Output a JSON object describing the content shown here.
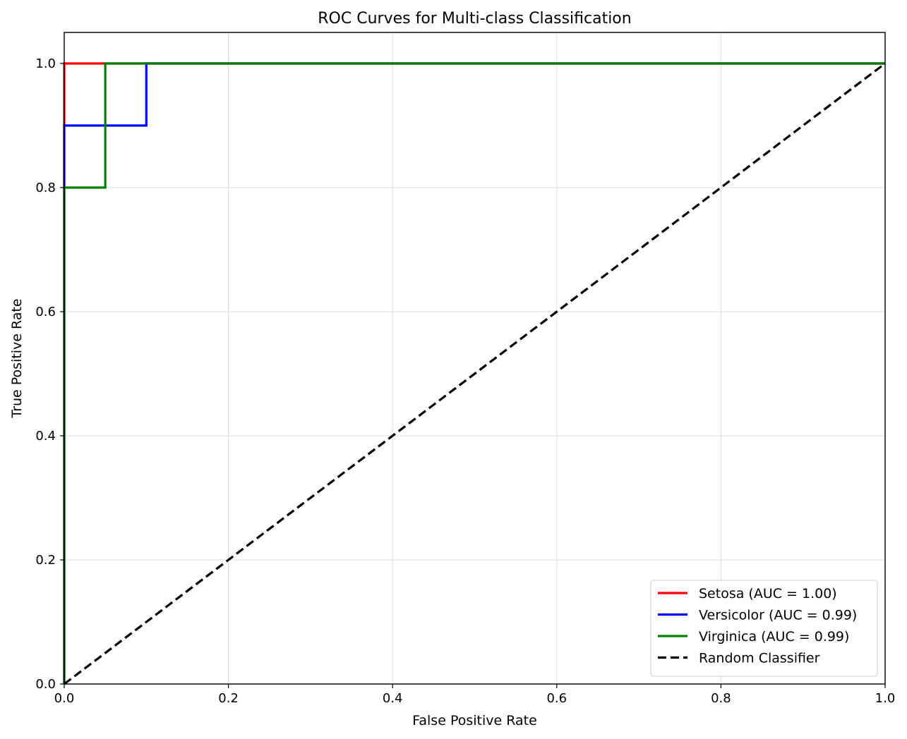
{
  "chart_data": {
    "type": "line",
    "title": "ROC Curves for Multi-class Classification",
    "xlabel": "False Positive Rate",
    "ylabel": "True Positive Rate",
    "xlim": [
      0.0,
      1.0
    ],
    "ylim": [
      0.0,
      1.05
    ],
    "xticks": [
      0.0,
      0.2,
      0.4,
      0.6,
      0.8,
      1.0
    ],
    "xtick_labels": [
      "0.0",
      "0.2",
      "0.4",
      "0.6",
      "0.8",
      "1.0"
    ],
    "yticks": [
      0.0,
      0.2,
      0.4,
      0.6,
      0.8,
      1.0
    ],
    "ytick_labels": [
      "0.0",
      "0.2",
      "0.4",
      "0.6",
      "0.8",
      "1.0"
    ],
    "grid": true,
    "legend_position": "bottom-right",
    "series": [
      {
        "name": "Setosa (AUC = 1.00)",
        "color": "#ff0000",
        "style": "solid",
        "x": [
          0.0,
          0.0,
          0.05,
          1.0
        ],
        "y": [
          0.0,
          1.0,
          1.0,
          1.0
        ]
      },
      {
        "name": "Versicolor (AUC = 0.99)",
        "color": "#0000ff",
        "style": "solid",
        "x": [
          0.0,
          0.0,
          0.1,
          0.1,
          1.0
        ],
        "y": [
          0.0,
          0.9,
          0.9,
          1.0,
          1.0
        ]
      },
      {
        "name": "Virginica (AUC = 0.99)",
        "color": "#008000",
        "style": "solid",
        "x": [
          0.0,
          0.0,
          0.05,
          0.05,
          1.0
        ],
        "y": [
          0.0,
          0.8,
          0.8,
          1.0,
          1.0
        ]
      },
      {
        "name": "Random Classifier",
        "color": "#000000",
        "style": "dashed",
        "x": [
          0.0,
          1.0
        ],
        "y": [
          0.0,
          1.0
        ]
      }
    ]
  }
}
